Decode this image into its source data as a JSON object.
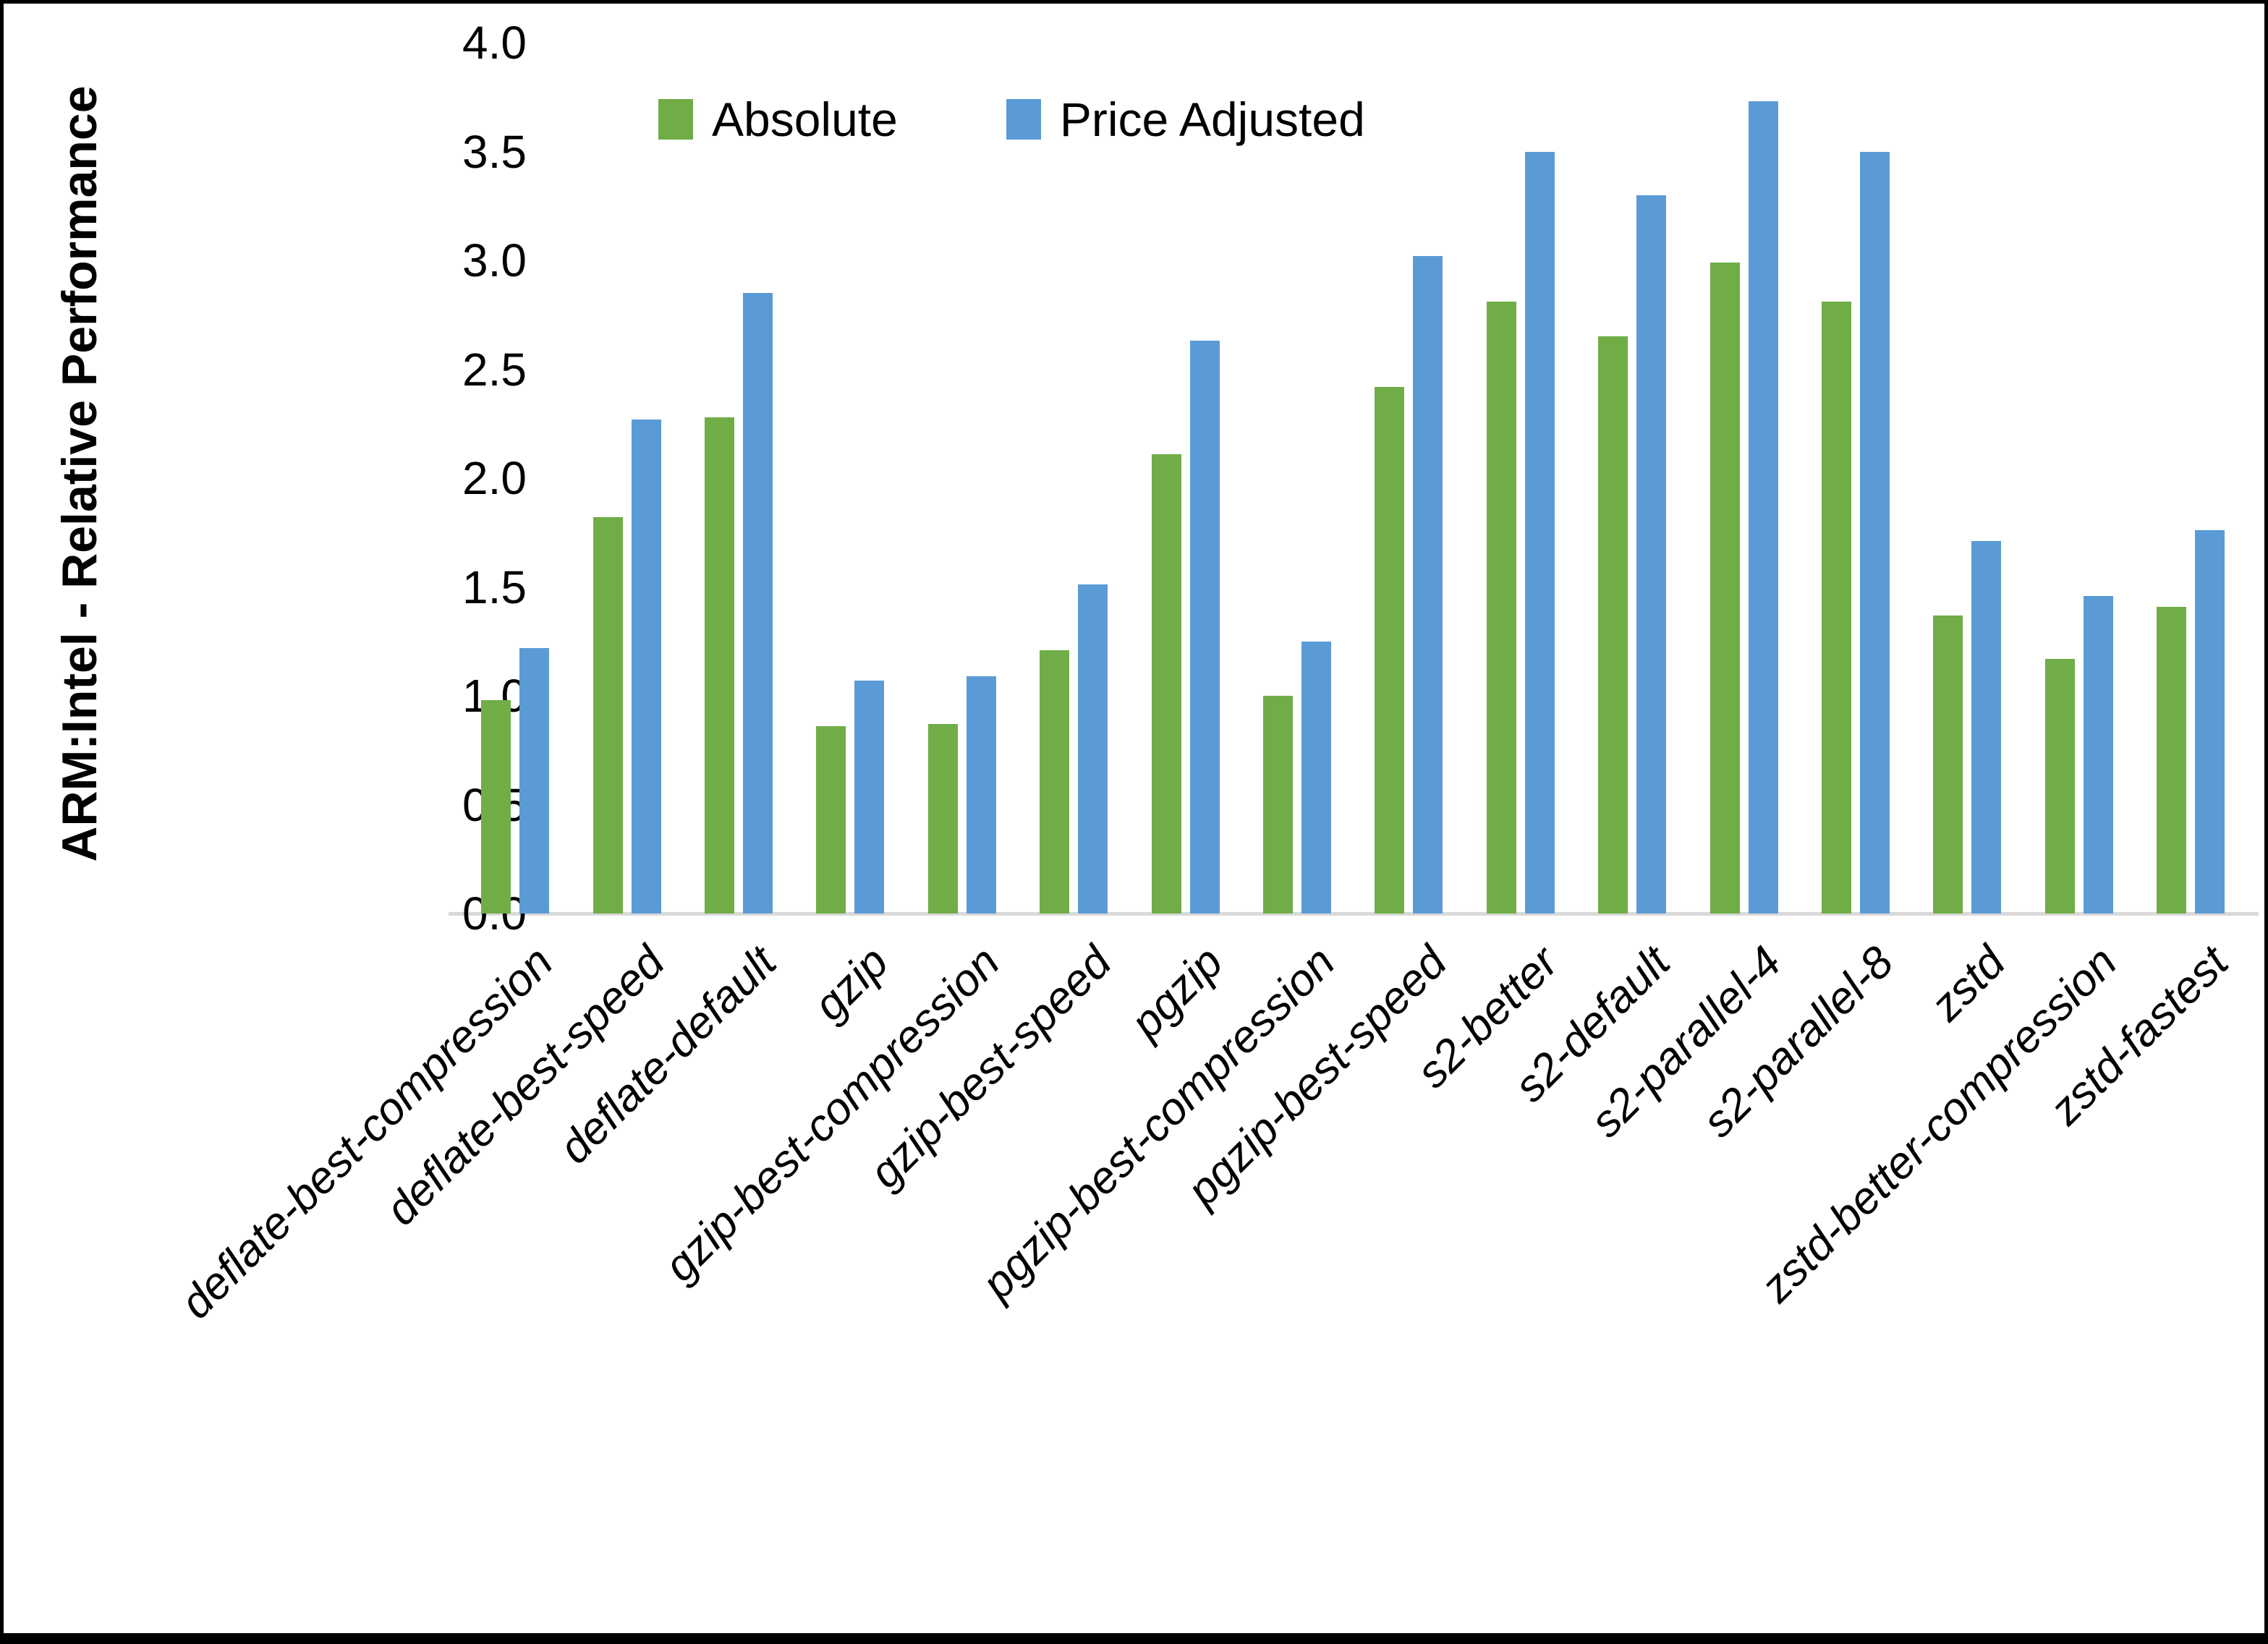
{
  "chart_data": {
    "type": "bar",
    "title": "",
    "ylabel": "ARM:Intel - Relative Performance",
    "xlabel": "",
    "ylim": [
      0,
      4
    ],
    "ytick_step": 0.5,
    "yticks": [
      "0.0",
      "0.5",
      "1.0",
      "1.5",
      "2.0",
      "2.5",
      "3.0",
      "3.5",
      "4.0"
    ],
    "grid": false,
    "legend_position": "top-center",
    "axis_line_color": "#D9D9D9",
    "categories": [
      "deflate-best-compression",
      "deflate-best-speed",
      "deflate-default",
      "gzip",
      "gzip-best-compression",
      "gzip-best-speed",
      "pgzip",
      "pgzip-best-compression",
      "pgzip-best-speed",
      "s2-better",
      "s2-default",
      "s2-parallel-4",
      "s2-parallel-8",
      "zstd",
      "zstd-better-compression",
      "zstd-fastest"
    ],
    "series": [
      {
        "name": "Absolute",
        "color": "#70AD47",
        "values": [
          0.98,
          1.82,
          2.28,
          0.86,
          0.87,
          1.21,
          2.11,
          1.0,
          2.42,
          2.81,
          2.65,
          2.99,
          2.81,
          1.37,
          1.17,
          1.41
        ]
      },
      {
        "name": "Price Adjusted",
        "color": "#5B9BD5",
        "values": [
          1.22,
          2.27,
          2.85,
          1.07,
          1.09,
          1.51,
          2.63,
          1.25,
          3.02,
          3.5,
          3.3,
          3.73,
          3.5,
          1.71,
          1.46,
          1.76
        ]
      }
    ]
  }
}
